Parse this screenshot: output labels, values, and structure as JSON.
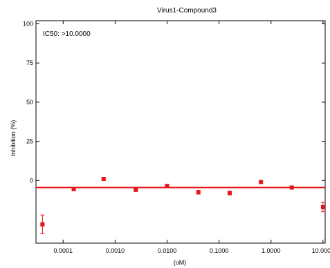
{
  "chart_data": {
    "type": "scatter",
    "title": "Virus1-Compound3",
    "xlabel": "(uM)",
    "ylabel": "Inhibition (%)",
    "x_scale": "log",
    "xlim": [
      3e-05,
      11
    ],
    "ylim": [
      -40,
      102
    ],
    "x_ticks": [
      0.0001,
      0.001,
      0.01,
      0.1,
      1,
      10
    ],
    "x_tick_labels": [
      "0.0001",
      "0.0010",
      "0.0100",
      "0.1000",
      "1.0000",
      "10.0000"
    ],
    "y_ticks": [
      0,
      25,
      50,
      75,
      100
    ],
    "y_tick_labels": [
      "0",
      "25",
      "50",
      "75",
      "100"
    ],
    "annotation": "IC50: >10.0000",
    "grid": false,
    "marker_color": "#e8141a",
    "fit_line": {
      "y": -4.5,
      "color": "#e8141a"
    },
    "points": [
      {
        "x": 4e-05,
        "y": -28,
        "err": 6
      },
      {
        "x": 0.00016,
        "y": -5.5,
        "err": 0.8
      },
      {
        "x": 0.0006,
        "y": 1,
        "err": 1
      },
      {
        "x": 0.0025,
        "y": -6,
        "err": 0.8
      },
      {
        "x": 0.01,
        "y": -3.5,
        "err": 0.8
      },
      {
        "x": 0.04,
        "y": -7.5,
        "err": 1.2
      },
      {
        "x": 0.16,
        "y": -8,
        "err": 1.2
      },
      {
        "x": 0.64,
        "y": -1,
        "err": 1
      },
      {
        "x": 2.5,
        "y": -4.5,
        "err": 0.8
      },
      {
        "x": 10,
        "y": -17,
        "err": 3
      }
    ]
  }
}
